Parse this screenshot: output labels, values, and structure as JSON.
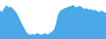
{
  "chart_data": {
    "type": "area",
    "values": [
      72,
      68,
      78,
      85,
      80,
      82,
      76,
      70,
      62,
      50,
      38,
      28,
      18,
      12,
      10,
      12,
      10,
      14,
      12,
      10,
      12,
      14,
      10,
      14,
      18,
      22,
      38,
      62,
      72,
      75,
      78,
      80,
      82,
      84,
      86,
      80,
      82,
      84,
      80,
      76,
      78,
      74,
      76,
      72,
      74,
      70,
      68,
      72,
      68,
      66
    ],
    "color": "#4ca8e8",
    "ylim": [
      0,
      100
    ],
    "grid": false,
    "tick_labels": false
  }
}
